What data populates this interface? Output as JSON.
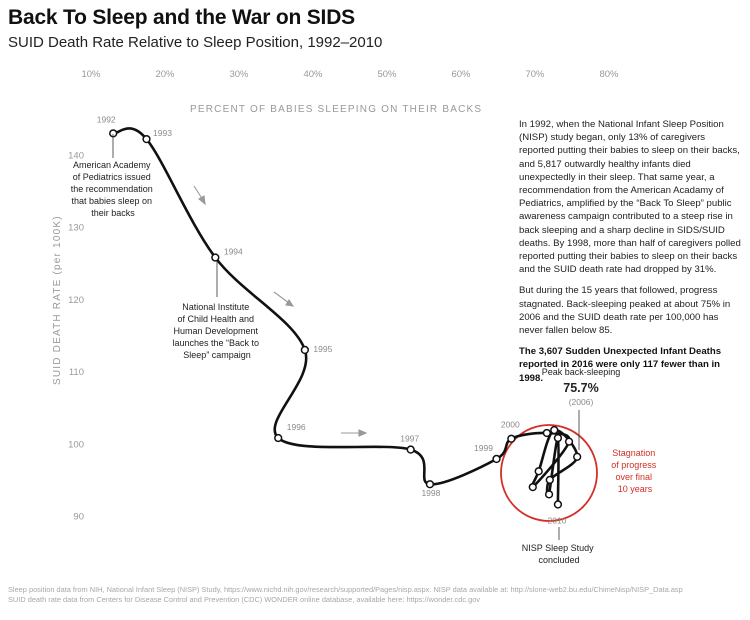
{
  "title": "Back To Sleep and the War on SIDS",
  "subtitle": "SUID Death Rate Relative to Sleep Position, 1992–2010",
  "colors": {
    "line": "#111111",
    "accent_red": "#d22f27",
    "axis_text": "#999999",
    "muted_text": "#a7a7a7"
  },
  "chart_data": {
    "type": "line",
    "title": "SUID Death Rate Relative to Sleep Position, 1992–2010",
    "xlabel": "PERCENT OF BABIES SLEEPING ON THEIR BACKS",
    "ylabel": "SUID DEATH RATE (per 100K)",
    "xlim": [
      5,
      85
    ],
    "ylim": [
      85,
      148
    ],
    "x_ticks": [
      10,
      20,
      30,
      40,
      50,
      60,
      70,
      80
    ],
    "x_tick_labels": [
      "10%",
      "20%",
      "30%",
      "40%",
      "50%",
      "60%",
      "70%",
      "80%"
    ],
    "y_ticks": [
      90,
      100,
      110,
      120,
      130,
      140
    ],
    "y_tick_labels": [
      "90",
      "100",
      "110",
      "120",
      "130",
      "140"
    ],
    "grid": false,
    "points": [
      {
        "year": "1992",
        "x": 13.0,
        "y": 143.0,
        "label": "1992"
      },
      {
        "year": "1993",
        "x": 17.5,
        "y": 142.2,
        "label": "1993"
      },
      {
        "year": "1994",
        "x": 26.8,
        "y": 125.8,
        "label": "1994"
      },
      {
        "year": "1995",
        "x": 38.9,
        "y": 113.0,
        "label": "1995"
      },
      {
        "year": "1996",
        "x": 35.3,
        "y": 100.8,
        "label": "1996"
      },
      {
        "year": "1997",
        "x": 53.2,
        "y": 99.2,
        "label": "1997"
      },
      {
        "year": "1998",
        "x": 55.8,
        "y": 94.4,
        "label": "1998"
      },
      {
        "year": "1999",
        "x": 64.8,
        "y": 97.9,
        "label": "1999"
      },
      {
        "year": "2000",
        "x": 66.8,
        "y": 100.7,
        "label": "2000"
      },
      {
        "year": "2001",
        "x": 71.6,
        "y": 101.5,
        "label": ""
      },
      {
        "year": "2002",
        "x": 74.6,
        "y": 100.3,
        "label": ""
      },
      {
        "year": "2003",
        "x": 69.7,
        "y": 94.0,
        "label": ""
      },
      {
        "year": "2004",
        "x": 70.5,
        "y": 96.2,
        "label": ""
      },
      {
        "year": "2005",
        "x": 72.6,
        "y": 101.9,
        "label": ""
      },
      {
        "year": "2006",
        "x": 75.7,
        "y": 98.2,
        "label": ""
      },
      {
        "year": "2007",
        "x": 72.0,
        "y": 95.0,
        "label": ""
      },
      {
        "year": "2008",
        "x": 71.9,
        "y": 93.0,
        "label": ""
      },
      {
        "year": "2009",
        "x": 73.1,
        "y": 100.8,
        "label": ""
      },
      {
        "year": "2010",
        "x": 73.1,
        "y": 91.6,
        "label": "2010"
      }
    ],
    "annotations": [
      "American Academy of Pediatrics issued the recommendation that babies sleep on their backs",
      "National Institute of Child Health and Human Development launches the “Back to Sleep” campaign",
      "NISP Sleep Study concluded",
      "Stagnation of progress over final 10 years",
      "Peak back-sleeping 75.7% (2006)"
    ]
  },
  "annotations": {
    "aap_lines": [
      "American Academy",
      "of Pediatrics issued",
      "the recommendation",
      "that babies sleep on",
      "their backs"
    ],
    "nichd_lines": [
      "National Institute",
      "of Child Health and",
      "Human Development",
      "launches the “Back to",
      "Sleep” campaign"
    ],
    "nisp_lines": [
      "NISP Sleep Study",
      "concluded"
    ],
    "stagnation_lines": [
      "Stagnation",
      "of progress",
      "over final",
      "10 years"
    ],
    "peak_label": "Peak back-sleeping",
    "peak_value": "75.7%",
    "peak_year": "(2006)"
  },
  "sidebar": {
    "p1": "In 1992, when the National Infant Sleep Position (NISP) study began, only 13% of caregivers reported putting their babies to sleep on their backs, and 5,817 outwardly healthy infants died unexpectedly in their sleep. That same year, a recommendation from the American Acadamy of Pediatrics, amplified by the “Back To Sleep” public awareness campaign contributed to a steep rise in back sleeping and a sharp decline in SIDS/SUID deaths. By 1998, more than half of caregivers polled reported putting their babies to sleep on their backs and the SUID death rate had dropped by 31%.",
    "p2": "But during the 15 years that followed, progress stagnated. Back-sleeping peaked at about 75% in 2006 and the SUID death rate per 100,000 has never fallen below 85.",
    "p3": "The 3,607 Sudden Unexpected Infant Deaths reported in 2016 were only 117 fewer than in 1998."
  },
  "footer": {
    "line1": "Sleep position data from NIH, National Infant Sleep (NISP) Study, https://www.nichd.nih.gov/research/supported/Pages/nisp.aspx. NISP data available at: http://slone-web2.bu.edu/ChimeNisp/NISP_Data.asp",
    "line2": "SUID death rate data from Centers for Disease Control and Prevention (CDC) WONDER online database, available here: https://wonder.cdc.gov"
  }
}
